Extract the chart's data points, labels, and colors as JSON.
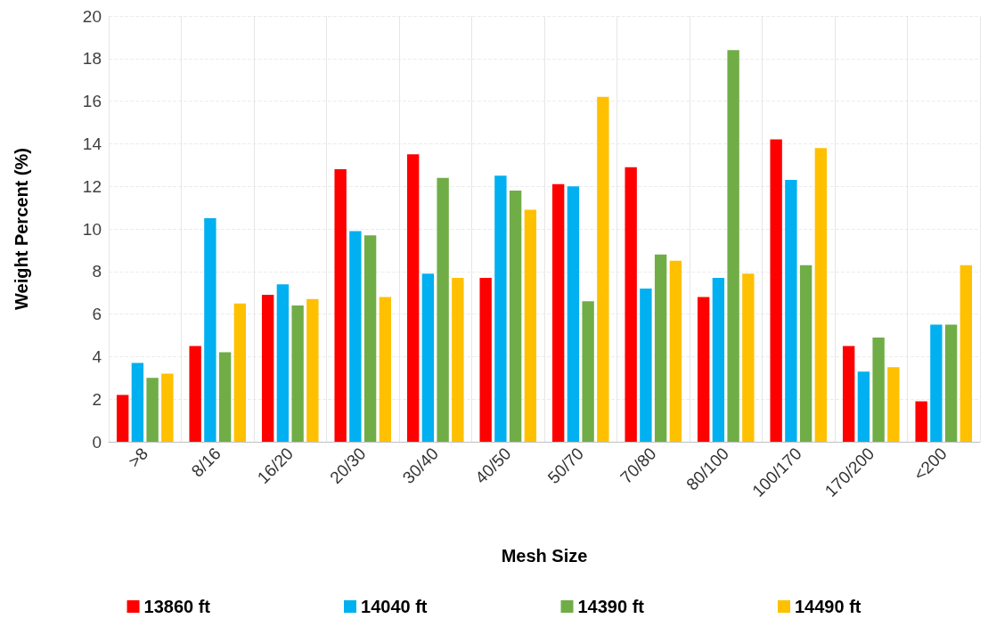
{
  "chart_data": {
    "type": "bar",
    "xlabel": "Mesh Size",
    "ylabel": "Weight Percent (%)",
    "categories": [
      ">8",
      "8/16",
      "16/20",
      "20/30",
      "30/40",
      "40/50",
      "50/70",
      "70/80",
      "80/100",
      "100/170",
      "170/200",
      "<200"
    ],
    "series": [
      {
        "name": "13860 ft",
        "color": "#ff0000",
        "values": [
          2.2,
          4.5,
          6.9,
          12.8,
          13.5,
          7.7,
          12.1,
          12.9,
          6.8,
          14.2,
          4.5,
          1.9
        ]
      },
      {
        "name": "14040 ft",
        "color": "#00b0f0",
        "values": [
          3.7,
          10.5,
          7.4,
          9.9,
          7.9,
          12.5,
          12.0,
          7.2,
          7.7,
          12.3,
          3.3,
          5.5
        ]
      },
      {
        "name": "14390 ft",
        "color": "#70ad47",
        "values": [
          3.0,
          4.2,
          6.4,
          9.7,
          12.4,
          11.8,
          6.6,
          8.8,
          18.4,
          8.3,
          4.9,
          5.5
        ]
      },
      {
        "name": "14490 ft",
        "color": "#ffc000",
        "values": [
          3.2,
          6.5,
          6.7,
          6.8,
          7.7,
          10.9,
          16.2,
          8.5,
          7.9,
          13.8,
          3.5,
          8.3
        ]
      }
    ],
    "ylim": [
      0,
      20
    ],
    "yticks": [
      0,
      2,
      4,
      6,
      8,
      10,
      12,
      14,
      16,
      18,
      20
    ],
    "grid": true,
    "legend": "bottom"
  }
}
